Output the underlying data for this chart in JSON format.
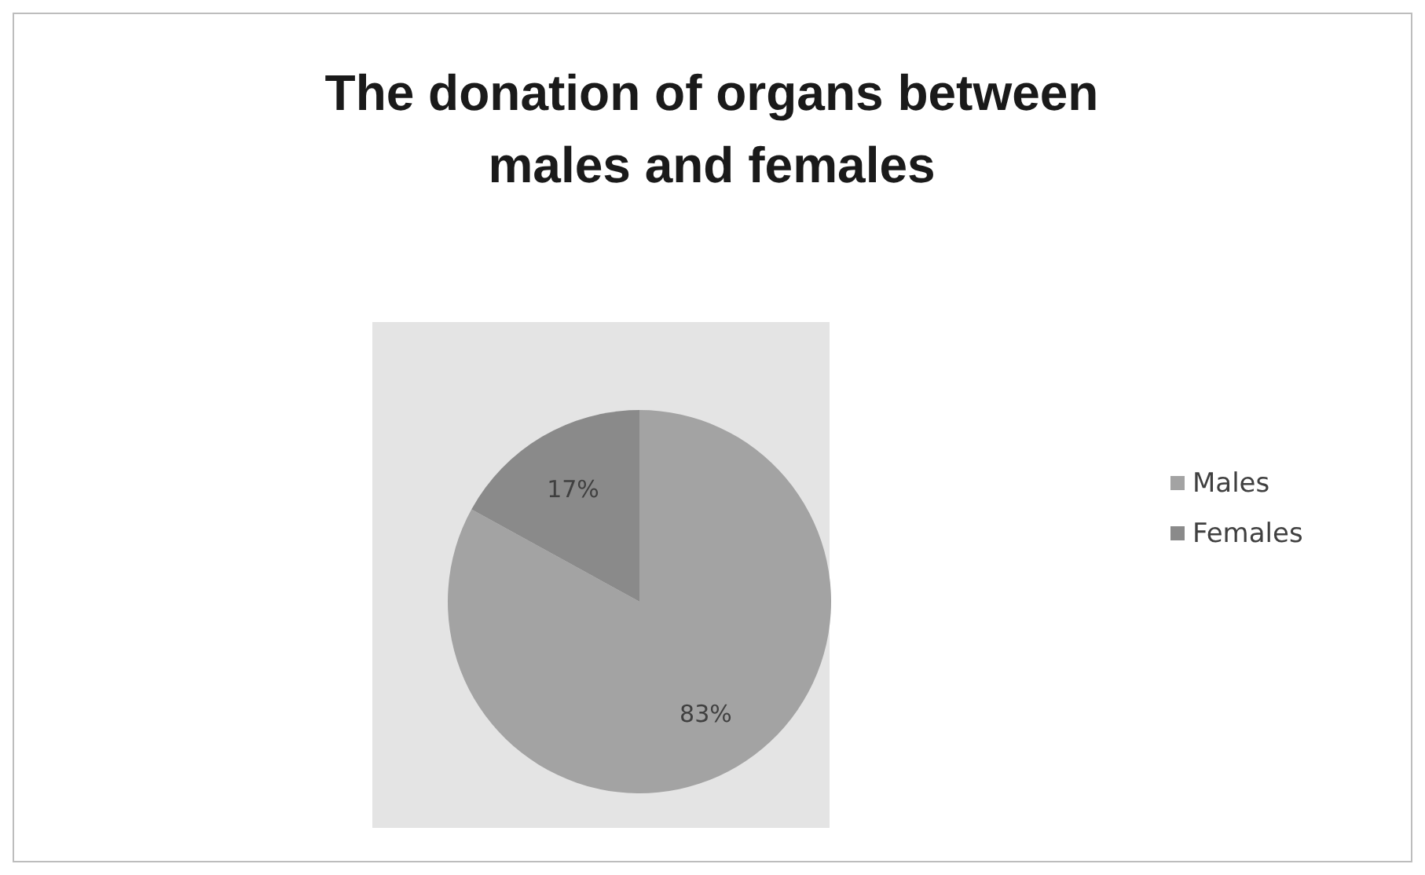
{
  "chart_data": {
    "type": "pie",
    "title": "The donation of organs between males and females",
    "categories": [
      "Males",
      "Females"
    ],
    "values": [
      83,
      17
    ],
    "value_labels": [
      "83%",
      "17%"
    ],
    "colors": [
      "#a3a3a3",
      "#8a8a8a"
    ],
    "legend": "right"
  }
}
